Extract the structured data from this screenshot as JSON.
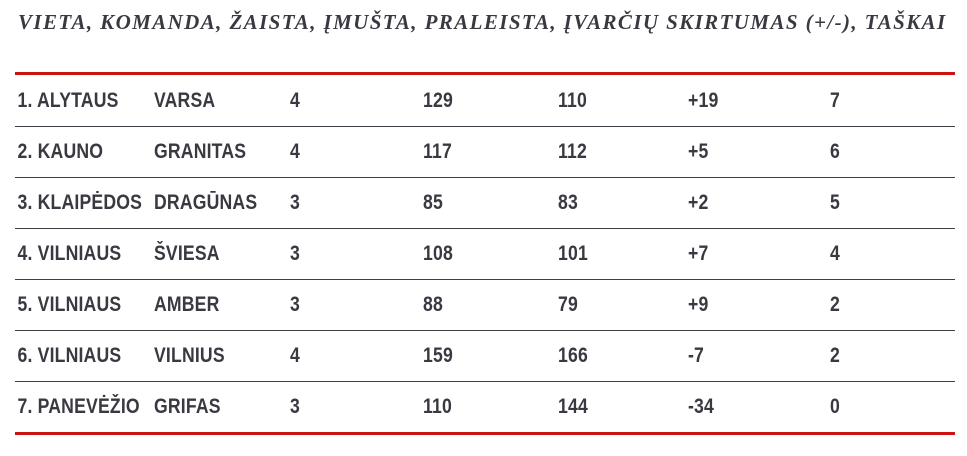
{
  "title": "VIETA, KOMANDA, ŽAISTA, ĮMUŠTA, PRALEISTA, ĮVARČIŲ SKIRTUMAS (+/-), TAŠKAI",
  "colors": {
    "accent_red": "#cc1212",
    "text": "#3a3942",
    "separator": "#3f3e46",
    "background": "#ffffff"
  },
  "chart_data": {
    "type": "table",
    "title": "VIETA, KOMANDA, ŽAISTA, ĮMUŠTA, PRALEISTA, ĮVARČIŲ SKIRTUMAS (+/-), TAŠKAI",
    "columns": [
      "VIETA",
      "KOMANDA",
      "ŽAISTA",
      "ĮMUŠTA",
      "PRALEISTA",
      "ĮVARČIŲ SKIRTUMAS (+/-)",
      "TAŠKAI"
    ],
    "rows": [
      [
        "1. ALYTAUS",
        "VARSA",
        "4",
        "129",
        "110",
        "+19",
        "7"
      ],
      [
        "2. KAUNO",
        "GRANITAS",
        "4",
        "117",
        "112",
        "+5",
        "6"
      ],
      [
        "3. KLAIPĖDOS",
        "DRAGŪNAS",
        "3",
        "85",
        "83",
        "+2",
        "5"
      ],
      [
        "4. VILNIAUS",
        "ŠVIESA",
        "3",
        "108",
        "101",
        "+7",
        "4"
      ],
      [
        "5. VILNIAUS",
        "AMBER",
        "3",
        "88",
        "79",
        "+9",
        "2"
      ],
      [
        "6. VILNIAUS",
        "VILNIUS",
        "4",
        "159",
        "166",
        "-7",
        "2"
      ],
      [
        "7. PANEVĖŽIO",
        "GRIFAS",
        "3",
        "110",
        "144",
        "-34",
        "0"
      ]
    ]
  }
}
